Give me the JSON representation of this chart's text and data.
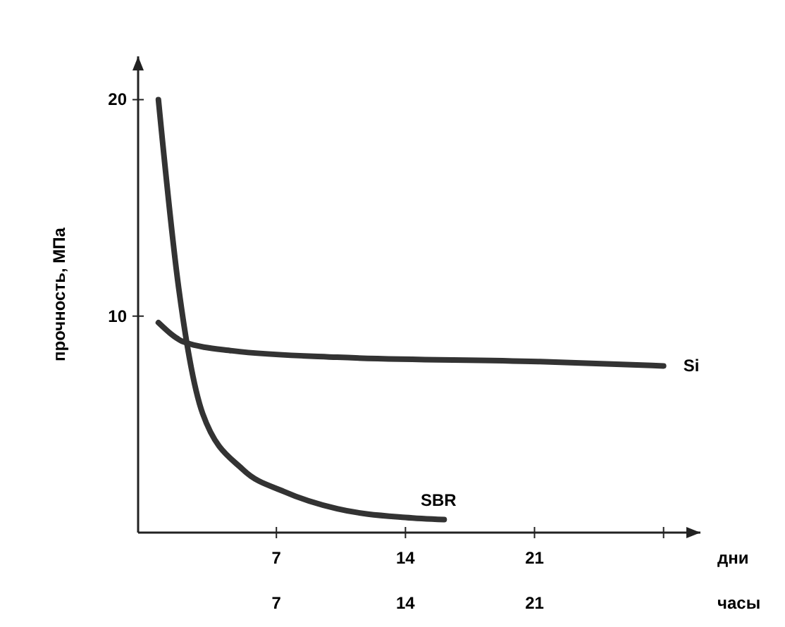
{
  "chart_data": {
    "type": "line",
    "ylabel": "прочность, МПа",
    "xlabel": "дни",
    "x2label": "часы",
    "xlim": [
      -0.5,
      30
    ],
    "xticks": [
      7,
      14,
      21,
      {
        "value": 28,
        "label": null
      }
    ],
    "x2lim": [
      -0.5,
      30
    ],
    "x2ticks": [
      7,
      14,
      21
    ],
    "ylim": [
      0,
      22
    ],
    "yticks": [
      10,
      20
    ],
    "grid": false,
    "marker": "none",
    "line_style": "solid",
    "series": [
      {
        "name": "SBR",
        "color": "#333333",
        "x": [
          0.6,
          1.7,
          3.0,
          5.2,
          7.4,
          10.3,
          14,
          16.1
        ],
        "values": [
          20,
          11.3,
          5.5,
          2.9,
          1.9,
          1.1,
          0.7,
          0.6
        ]
      },
      {
        "name": "Si",
        "color": "#333333",
        "x": [
          0.6,
          2.0,
          4.6,
          10.3,
          21.3,
          28
        ],
        "values": [
          9.7,
          8.8,
          8.4,
          8.1,
          7.9,
          7.7
        ]
      }
    ]
  }
}
